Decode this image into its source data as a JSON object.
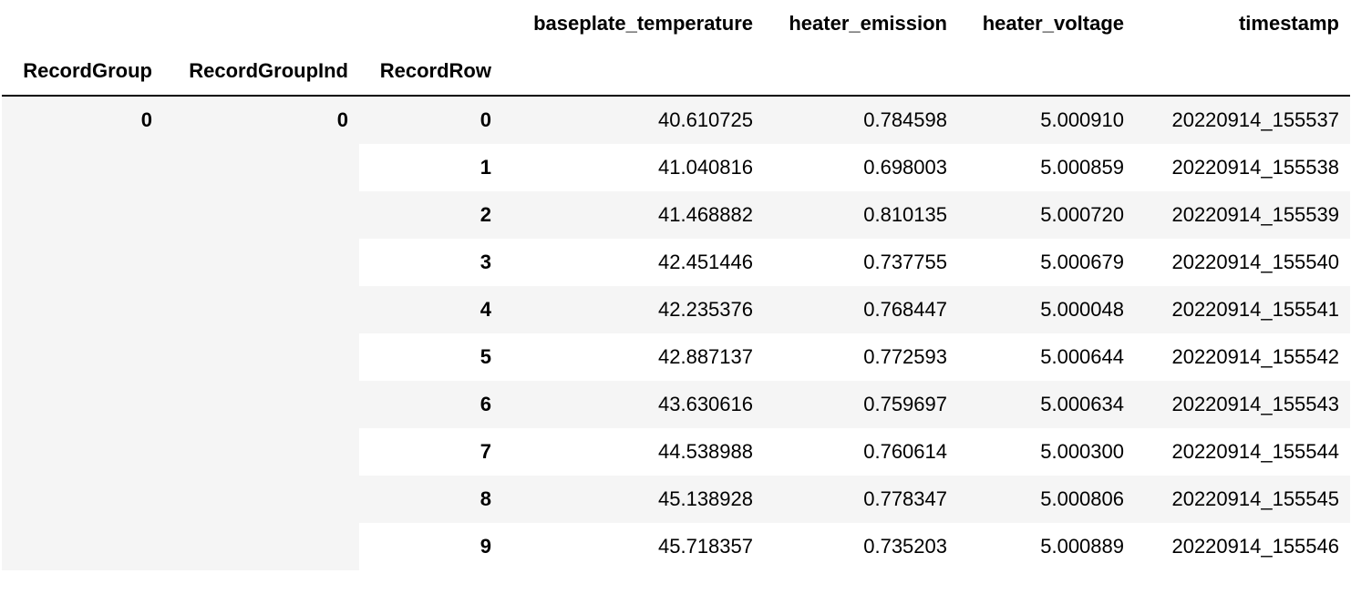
{
  "columns": {
    "baseplate_temperature": "baseplate_temperature",
    "heater_emission": "heater_emission",
    "heater_voltage": "heater_voltage",
    "timestamp": "timestamp"
  },
  "index_names": {
    "group": "RecordGroup",
    "group_ind": "RecordGroupInd",
    "row": "RecordRow"
  },
  "index_values": {
    "group": "0",
    "group_ind": "0"
  },
  "rows": [
    {
      "row": "0",
      "baseplate_temperature": "40.610725",
      "heater_emission": "0.784598",
      "heater_voltage": "5.000910",
      "timestamp": "20220914_155537"
    },
    {
      "row": "1",
      "baseplate_temperature": "41.040816",
      "heater_emission": "0.698003",
      "heater_voltage": "5.000859",
      "timestamp": "20220914_155538"
    },
    {
      "row": "2",
      "baseplate_temperature": "41.468882",
      "heater_emission": "0.810135",
      "heater_voltage": "5.000720",
      "timestamp": "20220914_155539"
    },
    {
      "row": "3",
      "baseplate_temperature": "42.451446",
      "heater_emission": "0.737755",
      "heater_voltage": "5.000679",
      "timestamp": "20220914_155540"
    },
    {
      "row": "4",
      "baseplate_temperature": "42.235376",
      "heater_emission": "0.768447",
      "heater_voltage": "5.000048",
      "timestamp": "20220914_155541"
    },
    {
      "row": "5",
      "baseplate_temperature": "42.887137",
      "heater_emission": "0.772593",
      "heater_voltage": "5.000644",
      "timestamp": "20220914_155542"
    },
    {
      "row": "6",
      "baseplate_temperature": "43.630616",
      "heater_emission": "0.759697",
      "heater_voltage": "5.000634",
      "timestamp": "20220914_155543"
    },
    {
      "row": "7",
      "baseplate_temperature": "44.538988",
      "heater_emission": "0.760614",
      "heater_voltage": "5.000300",
      "timestamp": "20220914_155544"
    },
    {
      "row": "8",
      "baseplate_temperature": "45.138928",
      "heater_emission": "0.778347",
      "heater_voltage": "5.000806",
      "timestamp": "20220914_155545"
    },
    {
      "row": "9",
      "baseplate_temperature": "45.718357",
      "heater_emission": "0.735203",
      "heater_voltage": "5.000889",
      "timestamp": "20220914_155546"
    }
  ]
}
